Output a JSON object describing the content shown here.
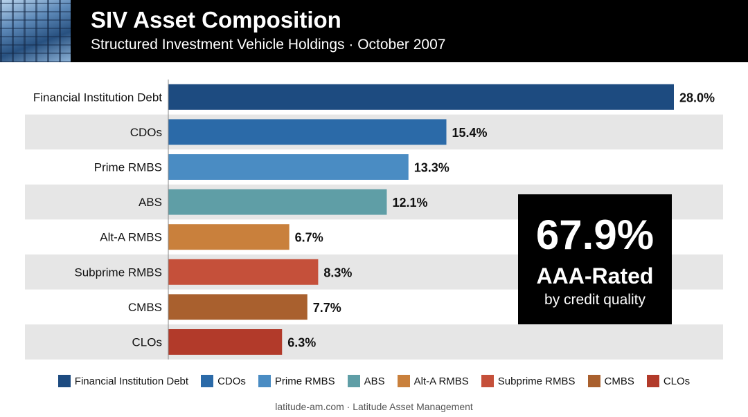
{
  "header": {
    "title": "SIV Asset Composition",
    "subtitle": "Structured Investment Vehicle Holdings · October 2007"
  },
  "chart_data": {
    "type": "bar",
    "orientation": "horizontal",
    "categories": [
      "Financial Institution Debt",
      "CDOs",
      "Prime RMBS",
      "ABS",
      "Alt-A RMBS",
      "Subprime RMBS",
      "CMBS",
      "CLOs"
    ],
    "values": [
      28.0,
      15.4,
      13.3,
      12.1,
      6.7,
      8.3,
      7.7,
      6.3
    ],
    "value_labels": [
      "28.0%",
      "15.4%",
      "13.3%",
      "12.1%",
      "6.7%",
      "8.3%",
      "7.7%",
      "6.3%"
    ],
    "colors": [
      "#1d4b80",
      "#2b6aa8",
      "#4a8cc3",
      "#5f9ea6",
      "#c9803c",
      "#c5503a",
      "#a9602e",
      "#b23a2a"
    ],
    "xlim": [
      0,
      28
    ],
    "grid": false,
    "legend_position": "bottom"
  },
  "callout": {
    "value": "67.9%",
    "label": "AAA-Rated",
    "sublabel": "by credit quality"
  },
  "legend": {
    "items": [
      {
        "label": "Financial Institution Debt",
        "color": "#1d4b80"
      },
      {
        "label": "CDOs",
        "color": "#2b6aa8"
      },
      {
        "label": "Prime RMBS",
        "color": "#4a8cc3"
      },
      {
        "label": "ABS",
        "color": "#5f9ea6"
      },
      {
        "label": "Alt-A RMBS",
        "color": "#c9803c"
      },
      {
        "label": "Subprime RMBS",
        "color": "#c5503a"
      },
      {
        "label": "CMBS",
        "color": "#a9602e"
      },
      {
        "label": "CLOs",
        "color": "#b23a2a"
      }
    ]
  },
  "footer": {
    "text": "latitude-am.com · Latitude Asset Management"
  }
}
